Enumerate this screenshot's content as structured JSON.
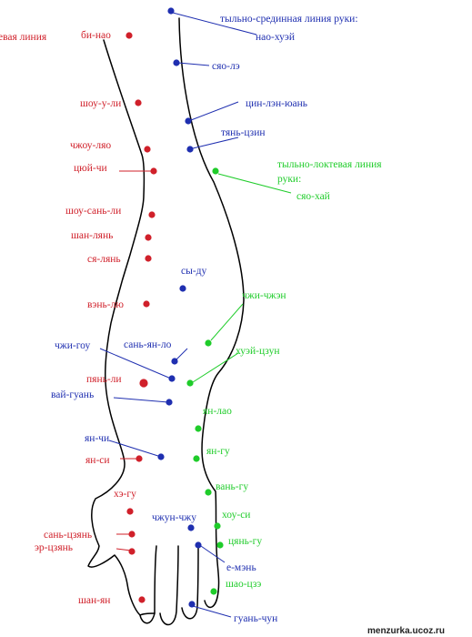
{
  "colors": {
    "red": "#d0202a",
    "blue": "#1f2fb0",
    "green": "#1fcc2a",
    "outline": "#000000"
  },
  "headers": {
    "red_line": "евая линия",
    "blue_line": "тыльно-срединная линия руки:",
    "green_line_1": "тыльно-локтевая линия",
    "green_line_2": "руки:"
  },
  "red_points": [
    "би-нао",
    "шоу-у-ли",
    "чжоу-ляо",
    "цюй-чи",
    "шоу-сань-ли",
    "шан-лянь",
    "ся-лянь",
    "вэнь-лю",
    "пянь-ли",
    "ян-чи",
    "ян-си",
    "хэ-гу",
    "сань-цзянь",
    "эр-цзянь",
    "шан-ян"
  ],
  "blue_points": [
    "нао-хуэй",
    "сяо-лэ",
    "цин-лэн-юань",
    "тянь-цзин",
    "сы-ду",
    "чжи-гоу",
    "сань-ян-ло",
    "вай-гуань",
    "ян-чи",
    "чжун-чжу",
    "е-мэнь",
    "гуань-чун"
  ],
  "green_points": [
    "сяо-хай",
    "чжи-чжэн",
    "хуэй-цзун",
    "ян-лао",
    "ян-гу",
    "вань-гу",
    "хоу-си",
    "цянь-гу",
    "шао-цзэ"
  ],
  "watermark": "menzurka.ucoz.ru"
}
